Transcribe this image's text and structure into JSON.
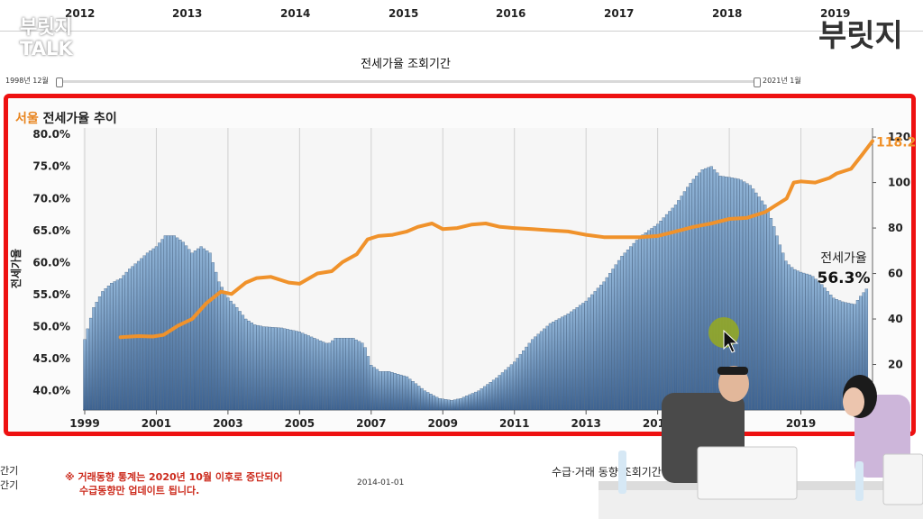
{
  "top_axis": {
    "years": [
      "2012",
      "2013",
      "2014",
      "2015",
      "2016",
      "2017",
      "2018",
      "2019"
    ]
  },
  "brand": {
    "line1": "부릿지",
    "line2": "TALK"
  },
  "logo": {
    "text": "부릿지"
  },
  "period": {
    "title": "전세가율 조회기간",
    "start": "1998년 12월",
    "end": "2021년 1월"
  },
  "panel": {
    "city": "서울",
    "title": "전세가율 추이"
  },
  "chart_data": {
    "type": "bar",
    "title": "서울 전세가율 추이",
    "ylabel": "전세가율",
    "ylim": [
      37.0,
      81.0
    ],
    "y_ticks": [
      "80.0%",
      "75.0%",
      "70.0%",
      "65.0%",
      "60.0%",
      "55.0%",
      "50.0%",
      "45.0%",
      "40.0%"
    ],
    "y2lim": [
      0,
      124
    ],
    "y2_ticks": [
      "120",
      "100",
      "80",
      "60",
      "40",
      "20",
      "0"
    ],
    "x_ticks": [
      "1999",
      "2001",
      "2003",
      "2005",
      "2007",
      "2009",
      "2011",
      "2013",
      "2015",
      "2017",
      "2019",
      "2021"
    ],
    "x_range": [
      1998.95,
      2021.0
    ],
    "series": [
      {
        "name": "전세가율",
        "type": "bar",
        "color": "#5b82ad",
        "points": [
          [
            1999.0,
            48
          ],
          [
            1999.25,
            53
          ],
          [
            1999.5,
            55.5
          ],
          [
            1999.75,
            56.8
          ],
          [
            2000.0,
            57.5
          ],
          [
            2000.25,
            59
          ],
          [
            2000.5,
            60.2
          ],
          [
            2000.75,
            61.5
          ],
          [
            2001.0,
            62.5
          ],
          [
            2001.25,
            64.2
          ],
          [
            2001.5,
            64.2
          ],
          [
            2001.75,
            63.2
          ],
          [
            2002.0,
            61.5
          ],
          [
            2002.25,
            62.5
          ],
          [
            2002.5,
            61.5
          ],
          [
            2002.75,
            57
          ],
          [
            2003.0,
            54.5
          ],
          [
            2003.25,
            53
          ],
          [
            2003.5,
            51.2
          ],
          [
            2003.75,
            50.3
          ],
          [
            2004.0,
            50
          ],
          [
            2004.5,
            49.8
          ],
          [
            2005.0,
            49.2
          ],
          [
            2005.5,
            48
          ],
          [
            2005.8,
            47.3
          ],
          [
            2006.0,
            48.2
          ],
          [
            2006.5,
            48.2
          ],
          [
            2006.8,
            47.3
          ],
          [
            2007.0,
            44
          ],
          [
            2007.25,
            43
          ],
          [
            2007.5,
            43
          ],
          [
            2008.0,
            42.2
          ],
          [
            2008.5,
            40
          ],
          [
            2008.9,
            38.8
          ],
          [
            2009.25,
            38.5
          ],
          [
            2009.5,
            38.8
          ],
          [
            2010.0,
            40
          ],
          [
            2010.5,
            42
          ],
          [
            2011.0,
            44.5
          ],
          [
            2011.5,
            48
          ],
          [
            2012.0,
            50.5
          ],
          [
            2012.5,
            52
          ],
          [
            2013.0,
            54
          ],
          [
            2013.5,
            57
          ],
          [
            2014.0,
            61
          ],
          [
            2014.5,
            64
          ],
          [
            2015.0,
            66
          ],
          [
            2015.5,
            69
          ],
          [
            2015.8,
            71.5
          ],
          [
            2016.0,
            73
          ],
          [
            2016.25,
            74.5
          ],
          [
            2016.5,
            75
          ],
          [
            2016.75,
            73.5
          ],
          [
            2017.0,
            73.3
          ],
          [
            2017.3,
            73
          ],
          [
            2017.6,
            72
          ],
          [
            2017.8,
            70.5
          ],
          [
            2018.0,
            69
          ],
          [
            2018.2,
            66.5
          ],
          [
            2018.4,
            63
          ],
          [
            2018.6,
            60
          ],
          [
            2018.8,
            59
          ],
          [
            2019.0,
            58.5
          ],
          [
            2019.3,
            58
          ],
          [
            2019.6,
            56.5
          ],
          [
            2019.9,
            54.5
          ],
          [
            2020.2,
            53.8
          ],
          [
            2020.5,
            53.5
          ],
          [
            2020.7,
            55
          ],
          [
            2020.9,
            56.3
          ]
        ]
      },
      {
        "name": "매매가격지수",
        "type": "line",
        "axis": "right",
        "color": "#f0922b",
        "points": [
          [
            2000.0,
            32
          ],
          [
            2000.5,
            32.5
          ],
          [
            2000.9,
            32.3
          ],
          [
            2001.2,
            33
          ],
          [
            2001.6,
            37
          ],
          [
            2002.0,
            40
          ],
          [
            2002.4,
            47
          ],
          [
            2002.8,
            52
          ],
          [
            2003.1,
            51
          ],
          [
            2003.5,
            56
          ],
          [
            2003.8,
            58
          ],
          [
            2004.2,
            58.5
          ],
          [
            2004.7,
            56
          ],
          [
            2005.0,
            55.5
          ],
          [
            2005.5,
            60
          ],
          [
            2005.9,
            61
          ],
          [
            2006.2,
            65
          ],
          [
            2006.6,
            68.5
          ],
          [
            2006.9,
            75
          ],
          [
            2007.2,
            76.5
          ],
          [
            2007.6,
            77
          ],
          [
            2008.0,
            78.5
          ],
          [
            2008.3,
            80.5
          ],
          [
            2008.7,
            82
          ],
          [
            2009.0,
            79.5
          ],
          [
            2009.4,
            80
          ],
          [
            2009.8,
            81.5
          ],
          [
            2010.2,
            82
          ],
          [
            2010.6,
            80.5
          ],
          [
            2011.0,
            80
          ],
          [
            2011.5,
            79.5
          ],
          [
            2012.0,
            79
          ],
          [
            2012.5,
            78.5
          ],
          [
            2013.0,
            77
          ],
          [
            2013.5,
            76
          ],
          [
            2014.0,
            76
          ],
          [
            2014.5,
            76
          ],
          [
            2015.0,
            76.5
          ],
          [
            2015.5,
            78.5
          ],
          [
            2016.0,
            80.5
          ],
          [
            2016.5,
            82
          ],
          [
            2017.0,
            84
          ],
          [
            2017.5,
            84.5
          ],
          [
            2018.0,
            87
          ],
          [
            2018.3,
            90
          ],
          [
            2018.6,
            93
          ],
          [
            2018.8,
            100
          ],
          [
            2019.0,
            100.5
          ],
          [
            2019.4,
            100
          ],
          [
            2019.8,
            102
          ],
          [
            2020.0,
            104
          ],
          [
            2020.4,
            106
          ],
          [
            2020.7,
            112
          ],
          [
            2021.0,
            118.2
          ]
        ]
      }
    ],
    "annotations": {
      "end_value": "118.2",
      "current_label": "전세가율",
      "current_value": "56.3%"
    }
  },
  "footer": {
    "note_line1": "※ 거래동향 통계는 2020년 10월 이후로  중단되어",
    "note_line2": "수급동향만 업데이트 됩니다.",
    "date": "2014-01-01",
    "right": "수급·거래 동향 조회기간",
    "left1": "간기",
    "left2": "간기"
  }
}
